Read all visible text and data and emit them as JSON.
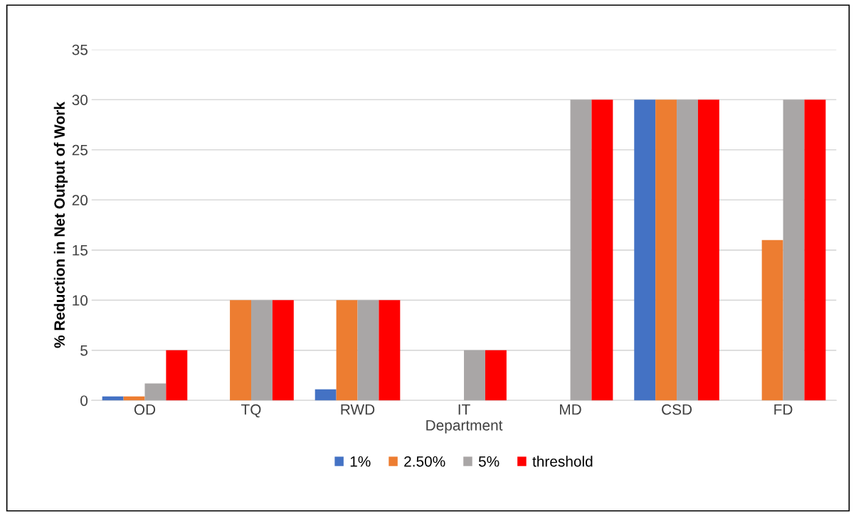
{
  "chart_data": {
    "type": "bar",
    "xlabel": "Department",
    "ylabel": "% Reduction in Net Output of Work",
    "categories": [
      "OD",
      "TQ",
      "RWD",
      "IT",
      "MD",
      "CSD",
      "FD"
    ],
    "series": [
      {
        "name": "1%",
        "color": "#4472c4",
        "values": [
          0.4,
          0,
          1.1,
          0,
          0,
          30,
          0
        ]
      },
      {
        "name": "2.50%",
        "color": "#ed7d31",
        "values": [
          0.4,
          10,
          10,
          0,
          0,
          30,
          16
        ]
      },
      {
        "name": "5%",
        "color": "#a9a6a6",
        "values": [
          1.7,
          10,
          10,
          5,
          30,
          30,
          30
        ]
      },
      {
        "name": "threshold",
        "color": "#ff0000",
        "values": [
          5,
          10,
          10,
          5,
          30,
          30,
          30
        ]
      }
    ],
    "ylim": [
      0,
      35
    ],
    "yticks": [
      0,
      5,
      10,
      15,
      20,
      25,
      30,
      35
    ],
    "grid": "y",
    "legend": "bottom"
  }
}
